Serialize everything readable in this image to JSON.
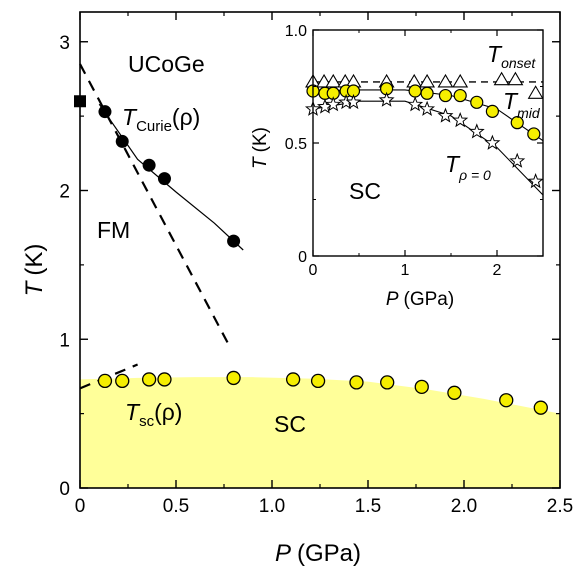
{
  "chart_data": [
    {
      "type": "scatter",
      "xlabel_var": "P",
      "xlabel_unit": "(GPa)",
      "ylabel_var": "T",
      "ylabel_unit": "(K)",
      "xlim": [
        0,
        2.5
      ],
      "ylim": [
        0,
        3.2
      ],
      "xticks": [
        "0",
        "0.5",
        "1.0",
        "1.5",
        "2.0",
        "2.5"
      ],
      "yticks": [
        "0",
        "1",
        "2",
        "3"
      ],
      "grid": false,
      "annotations": {
        "material": "UCoGe",
        "fm": "FM",
        "sc": "SC",
        "tcurie_main": "T",
        "tcurie_sub": "Curie",
        "tcurie_arg": "(ρ)",
        "tsc_main": "T",
        "tsc_sub": "sc",
        "tsc_arg": "(ρ)"
      },
      "series": [
        {
          "marker": "filled-circle",
          "color": "#000000",
          "x": [
            0.13,
            0.22,
            0.36,
            0.44,
            0.8
          ],
          "y": [
            2.53,
            2.33,
            2.17,
            2.08,
            1.66
          ]
        },
        {
          "marker": "filled-square",
          "color": "#000000",
          "x": [
            0.0
          ],
          "y": [
            2.6
          ]
        },
        {
          "marker": "yellow-circle",
          "color": "#f5ee00",
          "x": [
            0.13,
            0.22,
            0.36,
            0.44,
            0.8,
            1.11,
            1.24,
            1.44,
            1.6,
            1.78,
            1.95,
            2.22,
            2.4
          ],
          "y": [
            0.72,
            0.72,
            0.73,
            0.73,
            0.74,
            0.73,
            0.72,
            0.71,
            0.71,
            0.68,
            0.64,
            0.59,
            0.54
          ]
        }
      ],
      "fit_curve": {
        "x": [
          0.1,
          0.3,
          0.5,
          0.7,
          0.85
        ],
        "y": [
          2.58,
          2.21,
          1.99,
          1.78,
          1.6
        ]
      },
      "dashed_extrapolations": [
        {
          "x": [
            0.0,
            0.78
          ],
          "y": [
            2.85,
            0.95
          ]
        },
        {
          "x": [
            0.0,
            0.3
          ],
          "y": [
            0.67,
            0.83
          ]
        }
      ],
      "sc_region": {
        "fill": "#ffff99",
        "x": [
          0.0,
          0.3,
          0.6,
          0.9,
          1.2,
          1.5,
          1.8,
          2.1,
          2.5
        ],
        "y": [
          0.73,
          0.74,
          0.745,
          0.745,
          0.735,
          0.715,
          0.665,
          0.6,
          0.5
        ]
      }
    },
    {
      "type": "scatter",
      "xlabel_var": "P",
      "xlabel_unit": "(GPa)",
      "ylabel_var": "T",
      "ylabel_unit": "(K)",
      "xlim": [
        0,
        2.5
      ],
      "ylim": [
        0,
        1.0
      ],
      "xticks": [
        "0",
        "1",
        "2"
      ],
      "yticks": [
        "0",
        "0.5",
        "1.0"
      ],
      "grid": false,
      "annotations": {
        "sc": "SC",
        "onset_main": "T",
        "onset_sub": "onset",
        "mid_main": "T",
        "mid_sub": "mid",
        "rho0_main": "T",
        "rho0_sub": "ρ = 0"
      },
      "series": [
        {
          "marker": "open-triangle",
          "x": [
            0.0,
            0.12,
            0.22,
            0.35,
            0.44,
            0.8,
            1.1,
            1.24,
            1.44,
            1.6,
            2.05,
            2.2,
            2.42
          ],
          "y": [
            0.77,
            0.77,
            0.77,
            0.77,
            0.77,
            0.77,
            0.77,
            0.77,
            0.77,
            0.77,
            0.78,
            0.78,
            0.72
          ]
        },
        {
          "marker": "yellow-circle",
          "color": "#f5ee00",
          "x": [
            0.0,
            0.13,
            0.22,
            0.36,
            0.44,
            0.8,
            1.11,
            1.24,
            1.44,
            1.6,
            1.78,
            1.95,
            2.22,
            2.4
          ],
          "y": [
            0.73,
            0.72,
            0.72,
            0.73,
            0.73,
            0.74,
            0.73,
            0.72,
            0.71,
            0.71,
            0.68,
            0.64,
            0.59,
            0.54
          ]
        },
        {
          "marker": "open-star",
          "x": [
            0.0,
            0.13,
            0.22,
            0.36,
            0.44,
            0.8,
            1.11,
            1.24,
            1.44,
            1.6,
            1.78,
            1.95,
            2.22,
            2.42
          ],
          "y": [
            0.65,
            0.66,
            0.67,
            0.68,
            0.68,
            0.69,
            0.67,
            0.65,
            0.62,
            0.6,
            0.55,
            0.5,
            0.42,
            0.33
          ]
        }
      ],
      "dashed_onset_line": {
        "y": 0.77
      },
      "curves": [
        {
          "x": [
            0.0,
            0.5,
            1.0,
            1.5,
            2.0,
            2.5
          ],
          "y": [
            0.73,
            0.735,
            0.735,
            0.71,
            0.65,
            0.51
          ]
        },
        {
          "x": [
            0.0,
            0.5,
            1.0,
            1.5,
            2.0,
            2.5
          ],
          "y": [
            0.65,
            0.685,
            0.685,
            0.62,
            0.48,
            0.27
          ]
        }
      ]
    }
  ]
}
